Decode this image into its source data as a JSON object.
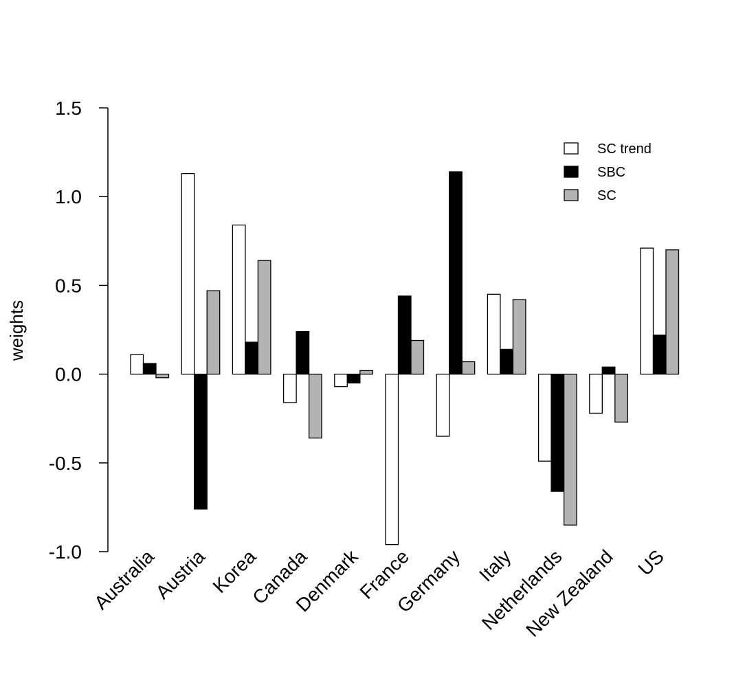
{
  "chart_data": {
    "type": "bar",
    "title": "",
    "xlabel": "",
    "ylabel": "weights",
    "ylim": [
      -1.0,
      1.5
    ],
    "yticks": [
      "-1.0",
      "-0.5",
      "0.0",
      "0.5",
      "1.0",
      "1.5"
    ],
    "ytick_values": [
      -1.0,
      -0.5,
      0.0,
      0.5,
      1.0,
      1.5
    ],
    "categories": [
      "Australia",
      "Austria",
      "Korea",
      "Canada",
      "Denmark",
      "France",
      "Germany",
      "Italy",
      "Netherlands",
      "New Zealand",
      "US"
    ],
    "series": [
      {
        "name": "SC trend",
        "color": "#ffffff",
        "values": [
          0.11,
          1.13,
          0.84,
          -0.16,
          -0.07,
          -0.96,
          -0.35,
          0.45,
          -0.49,
          -0.22,
          0.71
        ]
      },
      {
        "name": "SBC",
        "color": "#000000",
        "values": [
          0.06,
          -0.76,
          0.18,
          0.24,
          -0.05,
          0.44,
          1.14,
          0.14,
          -0.66,
          0.04,
          0.22
        ]
      },
      {
        "name": "SC",
        "color": "#b3b3b3",
        "values": [
          -0.02,
          0.47,
          0.64,
          -0.36,
          0.02,
          0.19,
          0.07,
          0.42,
          -0.85,
          -0.27,
          0.7
        ]
      }
    ],
    "legend": {
      "position": "top-right"
    }
  }
}
